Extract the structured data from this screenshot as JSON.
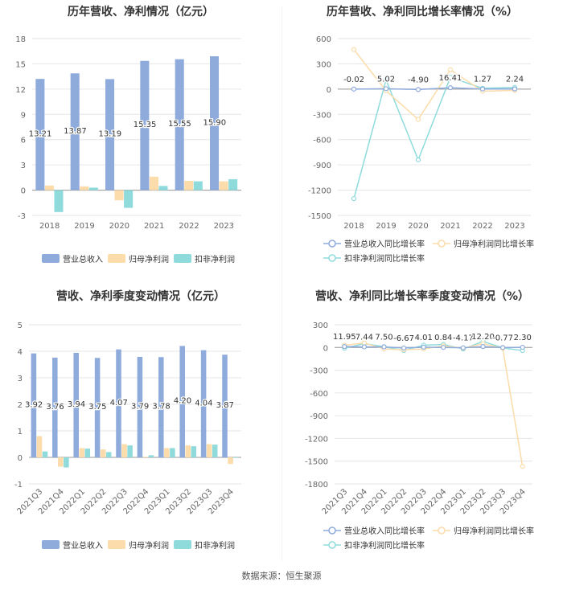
{
  "source_text": "数据来源：恒生聚源",
  "colors": {
    "revenue": "#8eabdc",
    "netprofit": "#fbdcaa",
    "deducted": "#8fdbdc",
    "grid": "#e6e6e6",
    "axis": "#999999"
  },
  "chart_data": [
    {
      "type": "bar",
      "title": "历年营收、净利情况（亿元）",
      "categories": [
        "2018",
        "2019",
        "2020",
        "2021",
        "2022",
        "2023"
      ],
      "ylim": [
        -3,
        18
      ],
      "yticks": [
        -3,
        0,
        3,
        6,
        9,
        12,
        15,
        18
      ],
      "series": [
        {
          "name": "营业总收入",
          "values": [
            13.21,
            13.87,
            13.19,
            15.35,
            15.55,
            15.9
          ],
          "labels": [
            "13.21",
            "13.87",
            "13.19",
            "15.35",
            "15.55",
            "15.90"
          ]
        },
        {
          "name": "归母净利润",
          "values": [
            0.55,
            0.45,
            -1.2,
            1.6,
            1.1,
            1.05
          ]
        },
        {
          "name": "扣非净利润",
          "values": [
            -2.6,
            0.3,
            -2.1,
            0.5,
            1.05,
            1.3
          ]
        }
      ],
      "legend": "bottom"
    },
    {
      "type": "line",
      "title": "历年营收、净利同比增长率情况（%）",
      "categories": [
        "2018",
        "2019",
        "2020",
        "2021",
        "2022",
        "2023"
      ],
      "ylim": [
        -1500,
        600
      ],
      "yticks": [
        -1500,
        -1200,
        -900,
        -600,
        -300,
        0,
        300,
        600
      ],
      "series": [
        {
          "name": "营业总收入同比增长率",
          "values": [
            -0.02,
            5.02,
            -4.9,
            16.41,
            1.27,
            2.24
          ],
          "labels": [
            "-0.02",
            "5.02",
            "-4.90",
            "16.41",
            "1.27",
            "2.24"
          ]
        },
        {
          "name": "归母净利润同比增长率",
          "values": [
            470,
            -20,
            -360,
            230,
            -25,
            -15
          ]
        },
        {
          "name": "扣非净利润同比增长率",
          "values": [
            -1300,
            110,
            -840,
            140,
            10,
            20
          ]
        }
      ],
      "legend": "bottom"
    },
    {
      "type": "bar",
      "title": "营收、净利季度变动情况（亿元）",
      "categories": [
        "2021Q3",
        "2021Q4",
        "2022Q1",
        "2022Q2",
        "2022Q3",
        "2022Q4",
        "2023Q1",
        "2023Q2",
        "2023Q3",
        "2023Q4"
      ],
      "ylim": [
        -1,
        5
      ],
      "yticks": [
        -1,
        0,
        1,
        2,
        3,
        4,
        5
      ],
      "series": [
        {
          "name": "营业总收入",
          "values": [
            3.92,
            3.76,
            3.94,
            3.75,
            4.07,
            3.79,
            3.78,
            4.2,
            4.04,
            3.87
          ],
          "labels": [
            "3.92",
            "3.76",
            "3.94",
            "3.75",
            "4.07",
            "3.79",
            "3.78",
            "4.20",
            "4.04",
            "3.87"
          ]
        },
        {
          "name": "归母净利润",
          "values": [
            0.8,
            -0.35,
            0.35,
            0.3,
            0.5,
            0.02,
            0.35,
            0.45,
            0.5,
            -0.25
          ]
        },
        {
          "name": "扣非净利润",
          "values": [
            0.22,
            -0.38,
            0.33,
            0.2,
            0.45,
            0.08,
            0.35,
            0.42,
            0.48,
            -0.02
          ]
        }
      ],
      "legend": "bottom"
    },
    {
      "type": "line",
      "title": "营收、净利同比增长率季度变动情况（%）",
      "categories": [
        "2021Q3",
        "2021Q4",
        "2022Q1",
        "2022Q2",
        "2022Q3",
        "2022Q4",
        "2023Q1",
        "2023Q2",
        "2023Q3",
        "2023Q4"
      ],
      "ylim": [
        -1800,
        300
      ],
      "yticks": [
        -1800,
        -1500,
        -1200,
        -900,
        -600,
        -300,
        0,
        300
      ],
      "series": [
        {
          "name": "营业总收入同比增长率",
          "values": [
            11.95,
            7.44,
            7.5,
            -6.67,
            4.01,
            0.84,
            -4.17,
            12.2,
            -0.77,
            2.3
          ],
          "labels": [
            "11.95",
            "7.44",
            "7.50",
            "-6.67",
            "4.01",
            "0.84",
            "-4.17",
            "12.20",
            "-0.77",
            "2.30"
          ]
        },
        {
          "name": "归母净利润同比增长率",
          "values": [
            30,
            60,
            -20,
            -30,
            -20,
            20,
            -10,
            50,
            -10,
            -1570
          ]
        },
        {
          "name": "扣非净利润同比增长率",
          "values": [
            -10,
            50,
            10,
            -40,
            30,
            40,
            -20,
            80,
            -5,
            -40
          ]
        }
      ],
      "legend": "bottom"
    }
  ]
}
